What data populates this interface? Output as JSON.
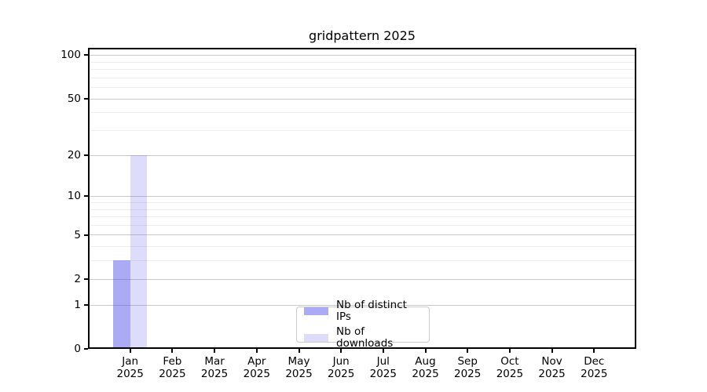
{
  "title": "gridpattern 2025",
  "chart_data": {
    "type": "bar",
    "title": "gridpattern 2025",
    "scale": "log10(1+v)",
    "x_months": [
      "Jan",
      "Feb",
      "Mar",
      "Apr",
      "May",
      "Jun",
      "Jul",
      "Aug",
      "Sep",
      "Oct",
      "Nov",
      "Dec"
    ],
    "x_year": "2025",
    "categories": [
      "Jan 2025",
      "Feb 2025",
      "Mar 2025",
      "Apr 2025",
      "May 2025",
      "Jun 2025",
      "Jul 2025",
      "Aug 2025",
      "Sep 2025",
      "Oct 2025",
      "Nov 2025",
      "Dec 2025"
    ],
    "series": [
      {
        "name": "Nb of distinct IPs",
        "color": "rgba(85,85,235,0.5)",
        "values": [
          3,
          0,
          0,
          0,
          0,
          0,
          0,
          0,
          0,
          0,
          0,
          0
        ]
      },
      {
        "name": "Nb of downloads",
        "color": "rgba(85,85,235,0.2)",
        "values": [
          20,
          0,
          0,
          0,
          0,
          0,
          0,
          0,
          0,
          0,
          0,
          0
        ]
      }
    ],
    "yticks": [
      0,
      1,
      2,
      5,
      10,
      20,
      50,
      100
    ],
    "yminor": [
      3,
      4,
      6,
      7,
      8,
      9,
      30,
      40,
      60,
      70,
      80,
      90
    ],
    "ylim": [
      0,
      112
    ],
    "grid": true,
    "legend_position": "lower center"
  },
  "colors": {
    "major_grid": "#c9c9c9",
    "minor_grid": "#ededed",
    "axis": "#000000",
    "text": "#000000",
    "legend_border": "#cccccc",
    "background": "#ffffff"
  }
}
